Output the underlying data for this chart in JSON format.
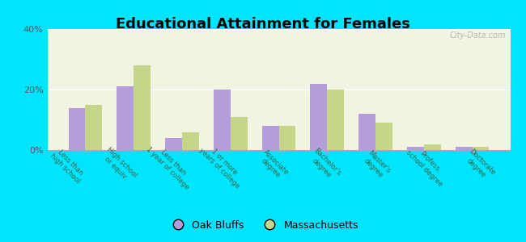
{
  "title": "Educational Attainment for Females",
  "categories": [
    "Less than\nhigh school",
    "High school\nor equiv.",
    "Less than\n1 year of college",
    "1 or more\nyears of college",
    "Associate\ndegree",
    "Bachelor's\ndegree",
    "Master's\ndegree",
    "Profess.\nschool degree",
    "Doctorate\ndegree"
  ],
  "oak_bluffs": [
    14,
    21,
    4,
    20,
    8,
    22,
    12,
    1,
    1
  ],
  "massachusetts": [
    15,
    28,
    6,
    11,
    8,
    20,
    9,
    2,
    1
  ],
  "oak_bluffs_color": "#b39ddb",
  "massachusetts_color": "#c5d68a",
  "background_outer": "#00e5ff",
  "background_inner": "#f0f4e0",
  "ylim": [
    0,
    40
  ],
  "yticks": [
    0,
    20,
    40
  ],
  "ytick_labels": [
    "0%",
    "20%",
    "40%"
  ],
  "legend_labels": [
    "Oak Bluffs",
    "Massachusetts"
  ],
  "legend_marker_oak": "#b39ddb",
  "legend_marker_mass": "#c5d68a"
}
